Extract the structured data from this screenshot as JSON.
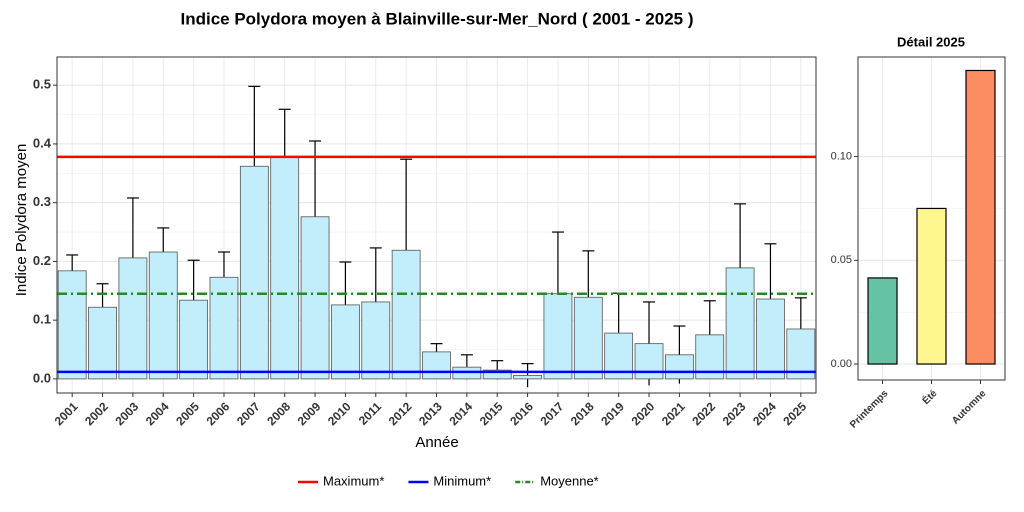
{
  "chart_data": [
    {
      "type": "bar",
      "title": "Indice Polydora moyen à Blainville-sur-Mer_Nord ( 2001 - 2025 )",
      "x_label": "Année",
      "y_label": "Indice Polydora moyen",
      "categories": [
        "2001",
        "2002",
        "2003",
        "2004",
        "2005",
        "2006",
        "2007",
        "2008",
        "2009",
        "2010",
        "2011",
        "2012",
        "2013",
        "2014",
        "2015",
        "2016",
        "2017",
        "2018",
        "2019",
        "2020",
        "2021",
        "2022",
        "2023",
        "2024",
        "2025"
      ],
      "values": [
        0.184,
        0.122,
        0.206,
        0.216,
        0.134,
        0.173,
        0.362,
        0.378,
        0.276,
        0.126,
        0.131,
        0.219,
        0.046,
        0.02,
        0.015,
        0.006,
        0.145,
        0.139,
        0.078,
        0.06,
        0.041,
        0.075,
        0.189,
        0.136,
        0.085
      ],
      "errors": [
        0.027,
        0.04,
        0.102,
        0.041,
        0.068,
        0.043,
        0.136,
        0.081,
        0.129,
        0.073,
        0.092,
        0.155,
        0.014,
        0.021,
        0.016,
        0.02,
        0.105,
        0.079,
        0.068,
        0.071,
        0.049,
        0.058,
        0.109,
        0.094,
        0.053
      ],
      "color": "#c2eefb",
      "ylim": [
        -0.024,
        0.548
      ],
      "yticks": [
        {
          "value": 0,
          "label": "0.0"
        },
        0.1,
        0.2,
        0.3,
        0.4,
        0.5
      ],
      "grid": true,
      "reference_lines": [
        {
          "name": "Maximum*",
          "value": 0.378,
          "color": "#ff0000",
          "dash": "solid"
        },
        {
          "name": "Minimum*",
          "value": 0.012,
          "color": "#0000ff",
          "dash": "solid"
        },
        {
          "name": "Moyenne*",
          "value": 0.145,
          "color": "#228b22",
          "dash": "dashdot"
        }
      ],
      "legend": "bottom"
    },
    {
      "type": "bar",
      "title": "Détail 2025",
      "categories": [
        "Printemps",
        "Été",
        "Automne"
      ],
      "values": [
        0.0415,
        0.075,
        0.1415
      ],
      "colors": [
        "#66c2a5",
        "#fff68f",
        "#fc8d62"
      ],
      "ylim": [
        -0.0077,
        0.148
      ],
      "yticks": [
        {
          "value": 0,
          "label": "0.00"
        },
        0.05,
        {
          "value": 0.1,
          "label": "0.10"
        }
      ],
      "grid": true
    }
  ]
}
